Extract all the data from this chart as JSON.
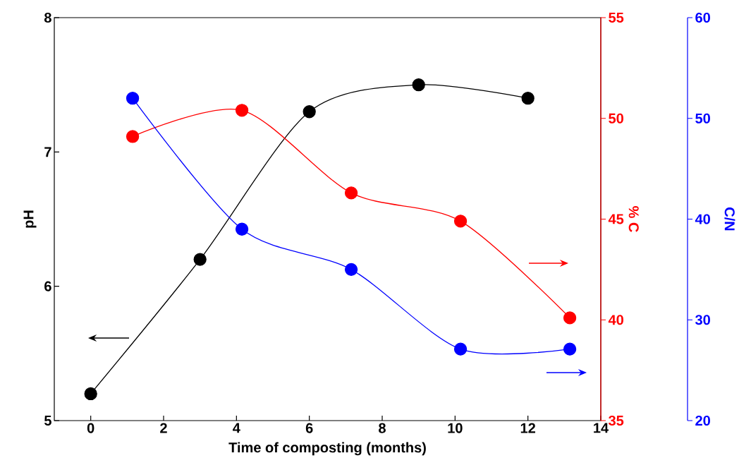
{
  "chart_data": {
    "type": "line",
    "xlabel": "Time of composting (months)",
    "ylabel": "pH",
    "y2label": "% C",
    "y3label": "C/N",
    "xlim": [
      -1,
      14
    ],
    "xticks": [
      0,
      2,
      4,
      6,
      8,
      10,
      12,
      14
    ],
    "ylim": [
      5,
      8
    ],
    "yticks": [
      5,
      6,
      7,
      8
    ],
    "y2lim": [
      35,
      55
    ],
    "y2ticks": [
      35,
      40,
      45,
      50,
      55
    ],
    "y3lim": [
      20,
      60
    ],
    "y3ticks": [
      20,
      30,
      40,
      50,
      60
    ],
    "marker": "circle",
    "line_style": "solid",
    "grid": false,
    "series": [
      {
        "color": "#000000",
        "axis": "y",
        "x": [
          0,
          3,
          6,
          9,
          12
        ],
        "values": [
          5.2,
          6.2,
          7.3,
          7.5,
          7.4
        ]
      },
      {
        "color": "#ff0000",
        "axis": "y2",
        "x": [
          1.15,
          4.15,
          7.15,
          10.15,
          13.15
        ],
        "values": [
          49.1,
          50.4,
          46.3,
          44.9,
          40.1
        ]
      },
      {
        "color": "#0000ff",
        "axis": "y3",
        "x": [
          1.15,
          4.15,
          7.15,
          10.15,
          13.15
        ],
        "values": [
          52,
          39,
          35,
          27.1,
          27.1
        ]
      }
    ]
  }
}
